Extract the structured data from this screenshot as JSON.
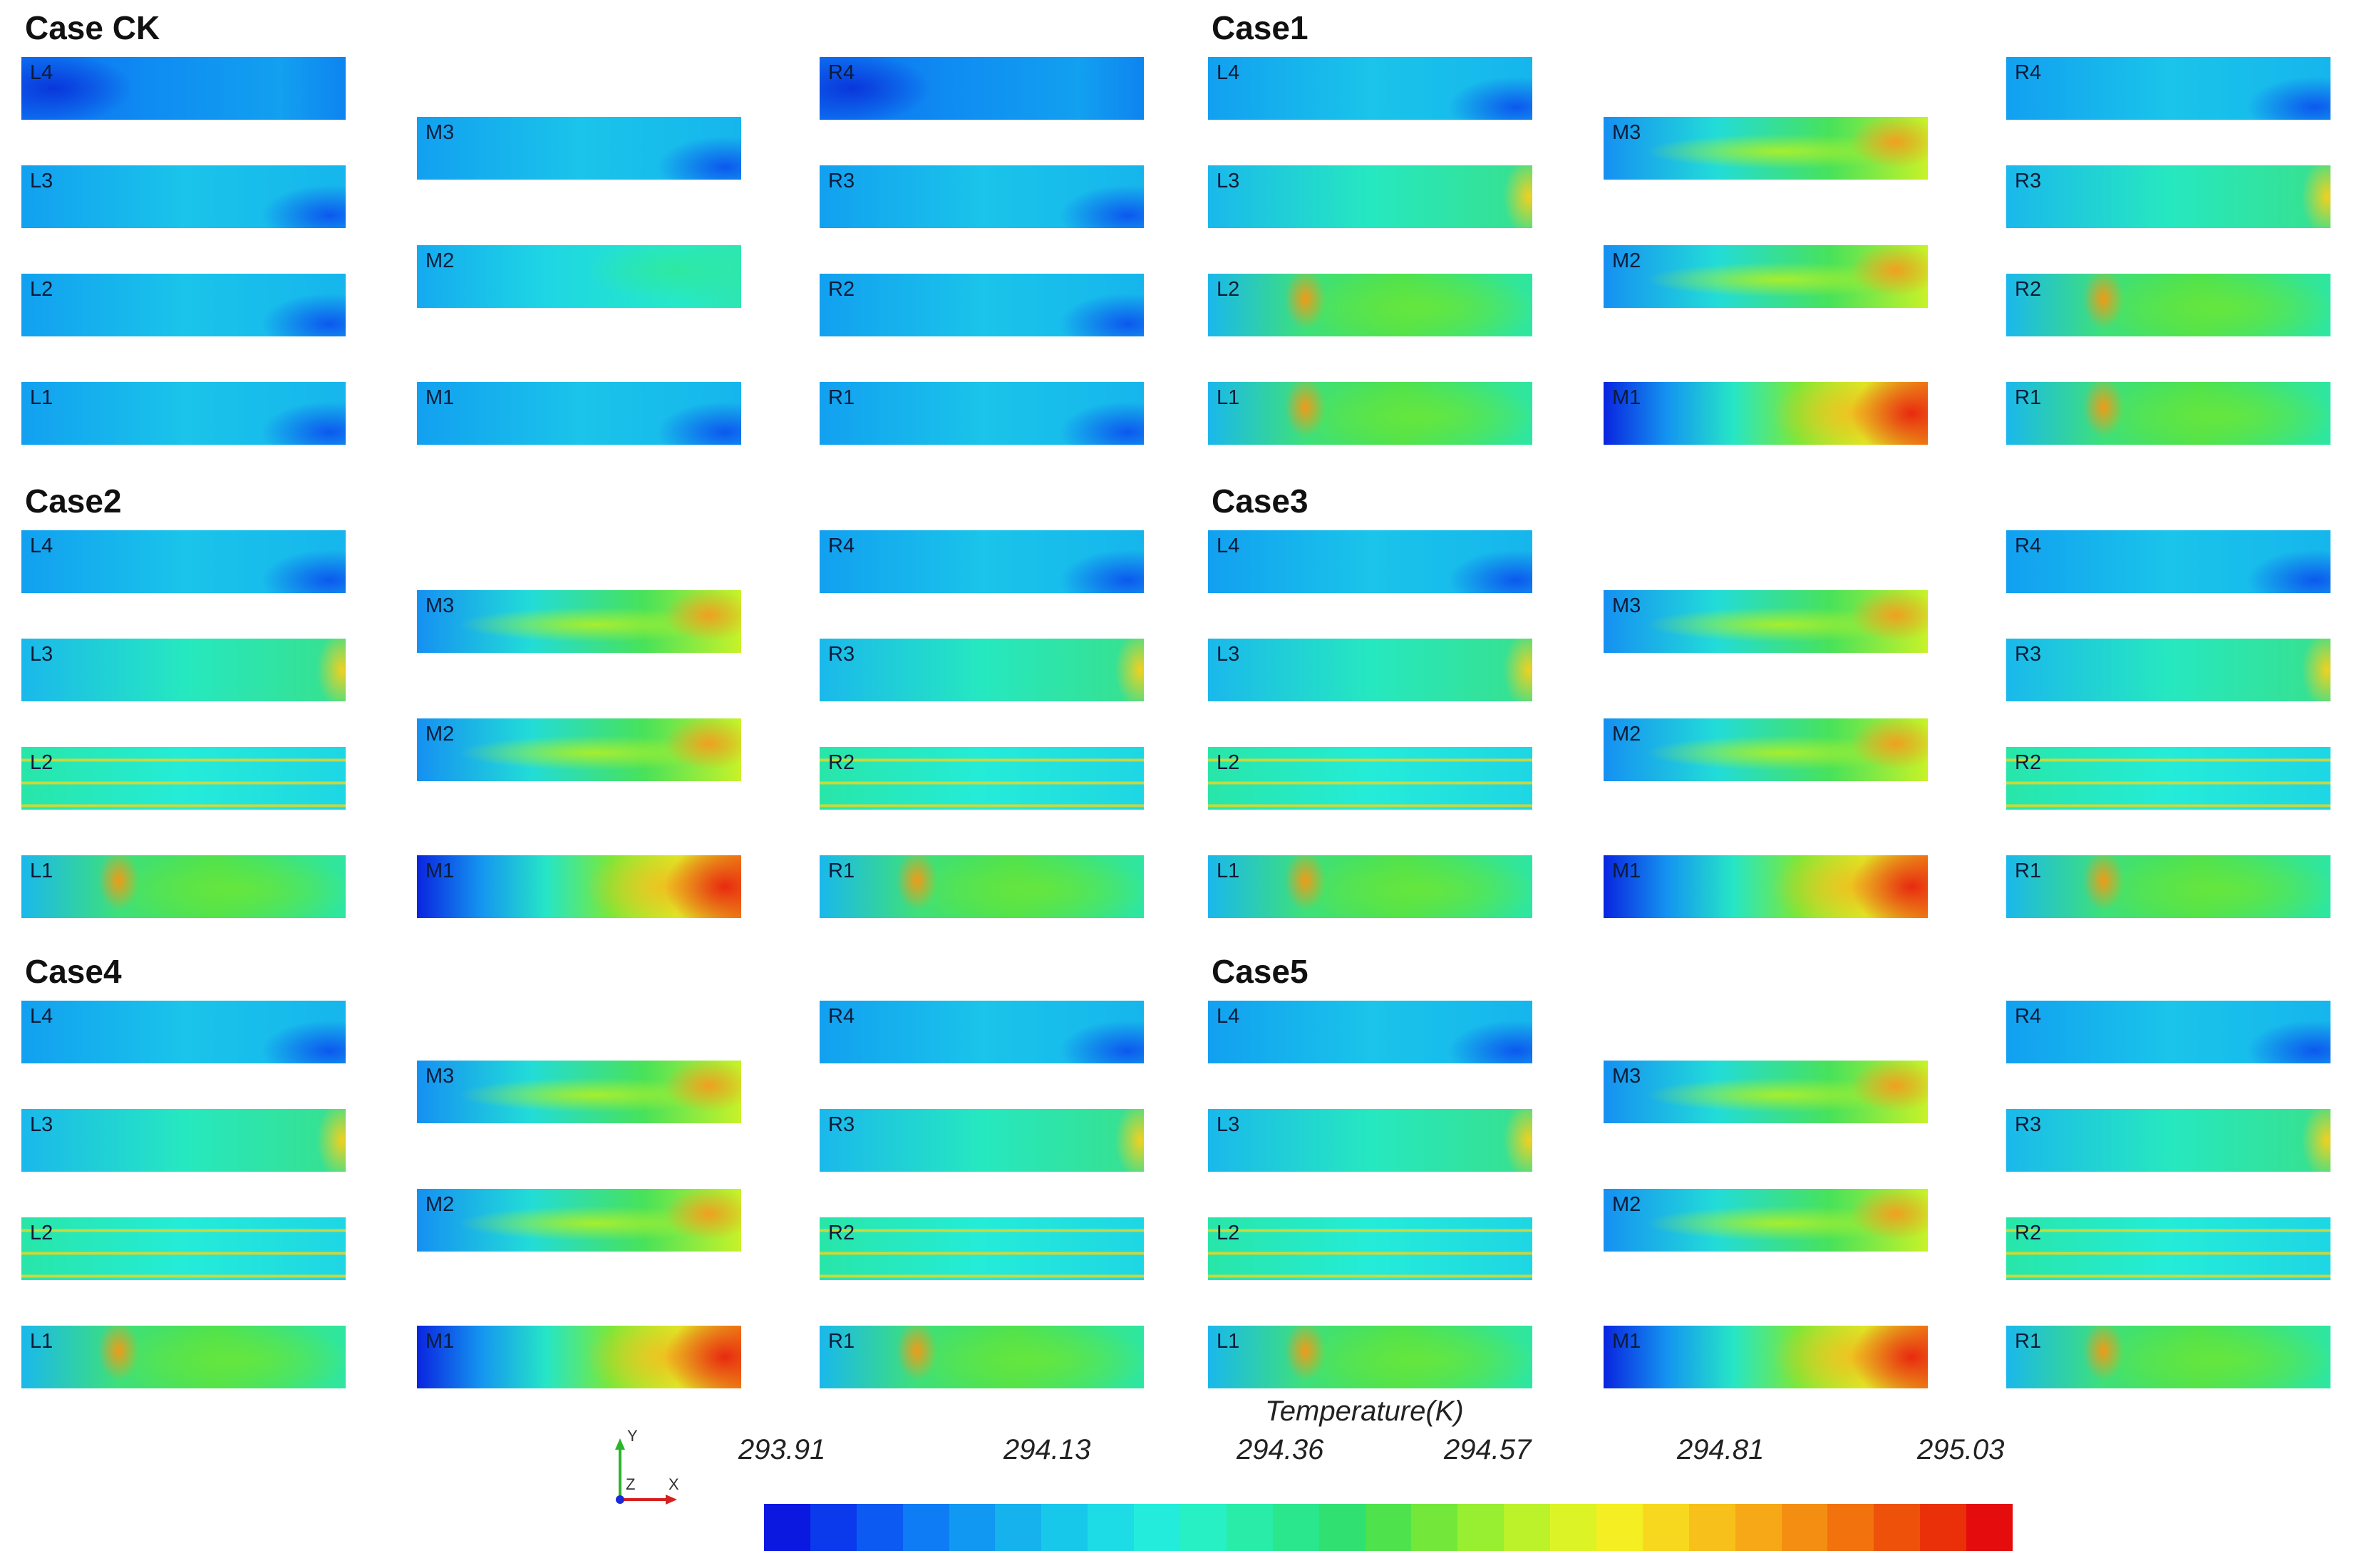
{
  "figure": {
    "cases": [
      {
        "title": "Case CK",
        "panels": {
          "L": [
            "L4",
            "L3",
            "L2",
            "L1"
          ],
          "M": [
            "M3",
            "M2",
            "M1"
          ],
          "R": [
            "R4",
            "R3",
            "R2",
            "R1"
          ]
        }
      },
      {
        "title": "Case1",
        "panels": {
          "L": [
            "L4",
            "L3",
            "L2",
            "L1"
          ],
          "M": [
            "M3",
            "M2",
            "M1"
          ],
          "R": [
            "R4",
            "R3",
            "R2",
            "R1"
          ]
        }
      },
      {
        "title": "Case2",
        "panels": {
          "L": [
            "L4",
            "L3",
            "L2",
            "L1"
          ],
          "M": [
            "M3",
            "M2",
            "M1"
          ],
          "R": [
            "R4",
            "R3",
            "R2",
            "R1"
          ]
        }
      },
      {
        "title": "Case3",
        "panels": {
          "L": [
            "L4",
            "L3",
            "L2",
            "L1"
          ],
          "M": [
            "M3",
            "M2",
            "M1"
          ],
          "R": [
            "R4",
            "R3",
            "R2",
            "R1"
          ]
        }
      },
      {
        "title": "Case4",
        "panels": {
          "L": [
            "L4",
            "L3",
            "L2",
            "L1"
          ],
          "M": [
            "M3",
            "M2",
            "M1"
          ],
          "R": [
            "R4",
            "R3",
            "R2",
            "R1"
          ]
        }
      },
      {
        "title": "Case5",
        "panels": {
          "L": [
            "L4",
            "L3",
            "L2",
            "L1"
          ],
          "M": [
            "M3",
            "M2",
            "M1"
          ],
          "R": [
            "R4",
            "R3",
            "R2",
            "R1"
          ]
        }
      }
    ]
  },
  "legend": {
    "title": "Temperature(K)",
    "ticks": [
      "293.91",
      "294.13",
      "294.36",
      "294.57",
      "294.81",
      "295.03"
    ],
    "colors": [
      "#0a18e0",
      "#0a3aec",
      "#0c5af2",
      "#0e7cf4",
      "#1198f2",
      "#15b2ee",
      "#18c8ea",
      "#1edce6",
      "#24ecdc",
      "#27f0c4",
      "#28eca8",
      "#2ae68c",
      "#30e070",
      "#4ee24c",
      "#74e83a",
      "#98ee30",
      "#bcf22a",
      "#dcf426",
      "#f4ee22",
      "#f8d81e",
      "#f8c01a",
      "#f6a816",
      "#f48e12",
      "#f2720e",
      "#ee520a",
      "#ea3008",
      "#e40c0c"
    ]
  },
  "axes_triad": {
    "y": "Y",
    "z": "Z",
    "x": "X"
  }
}
